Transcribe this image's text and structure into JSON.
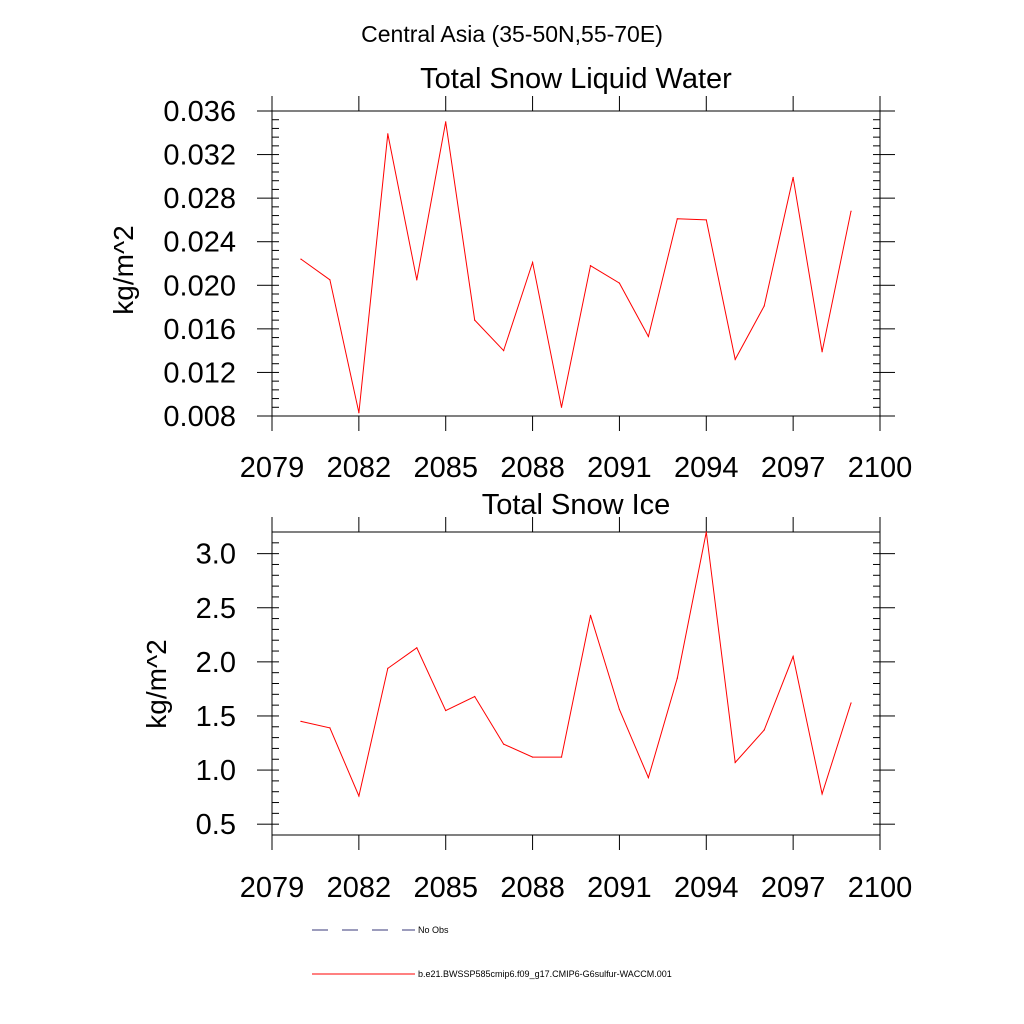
{
  "header": {
    "region_title": "Central Asia (35-50N,55-70E)"
  },
  "colors": {
    "series": "#ff0000",
    "no_obs": "#3a3a7a",
    "axis": "#000000"
  },
  "legend": {
    "no_obs_label": "No Obs",
    "series_label": "b.e21.BWSSP585cmip6.f09_g17.CMIP6-G6sulfur-WACCM.001"
  },
  "chart_data": [
    {
      "type": "line",
      "title": "Total Snow Liquid Water",
      "xlabel": "",
      "ylabel": "kg/m^2",
      "xlim": [
        2079,
        2100
      ],
      "ylim": [
        0.008,
        0.036
      ],
      "xticks": [
        2079,
        2082,
        2085,
        2088,
        2091,
        2094,
        2097,
        2100
      ],
      "xtick_labels": [
        "2079",
        "2082",
        "2085",
        "2088",
        "2091",
        "2094",
        "2097",
        "2100"
      ],
      "yticks": [
        0.008,
        0.012,
        0.016,
        0.02,
        0.024,
        0.028,
        0.032,
        0.036
      ],
      "ytick_labels": [
        "0.008",
        "0.012",
        "0.016",
        "0.020",
        "0.024",
        "0.028",
        "0.032",
        "0.036"
      ],
      "yminor_step": 0.0008,
      "series": [
        {
          "x": [
            2080,
            2081,
            2082,
            2083,
            2084,
            2085,
            2086,
            2087,
            2088,
            2089,
            2090,
            2091,
            2092,
            2093,
            2094,
            2095,
            2096,
            2097,
            2098,
            2099
          ],
          "values": [
            0.0224,
            0.0205,
            0.0083,
            0.0339,
            0.0205,
            0.035,
            0.0168,
            0.014,
            0.0221,
            0.0088,
            0.0218,
            0.0202,
            0.0153,
            0.0261,
            0.026,
            0.0132,
            0.0181,
            0.0299,
            0.0139,
            0.0268
          ]
        }
      ]
    },
    {
      "type": "line",
      "title": "Total Snow Ice",
      "xlabel": "",
      "ylabel": "kg/m^2",
      "xlim": [
        2079,
        2100
      ],
      "ylim": [
        0.4,
        3.2
      ],
      "xticks": [
        2079,
        2082,
        2085,
        2088,
        2091,
        2094,
        2097,
        2100
      ],
      "xtick_labels": [
        "2079",
        "2082",
        "2085",
        "2088",
        "2091",
        "2094",
        "2097",
        "2100"
      ],
      "yticks": [
        0.5,
        1.0,
        1.5,
        2.0,
        2.5,
        3.0
      ],
      "ytick_labels": [
        "0.5",
        "1.0",
        "1.5",
        "2.0",
        "2.5",
        "3.0"
      ],
      "yminor_step": 0.1,
      "series": [
        {
          "x": [
            2080,
            2081,
            2082,
            2083,
            2084,
            2085,
            2086,
            2087,
            2088,
            2089,
            2090,
            2091,
            2092,
            2093,
            2094,
            2095,
            2096,
            2097,
            2098,
            2099
          ],
          "values": [
            1.45,
            1.39,
            0.76,
            1.94,
            2.13,
            1.55,
            1.68,
            1.24,
            1.12,
            1.12,
            2.43,
            1.56,
            0.93,
            1.85,
            3.2,
            1.07,
            1.37,
            2.05,
            0.78,
            1.62
          ]
        }
      ]
    }
  ]
}
